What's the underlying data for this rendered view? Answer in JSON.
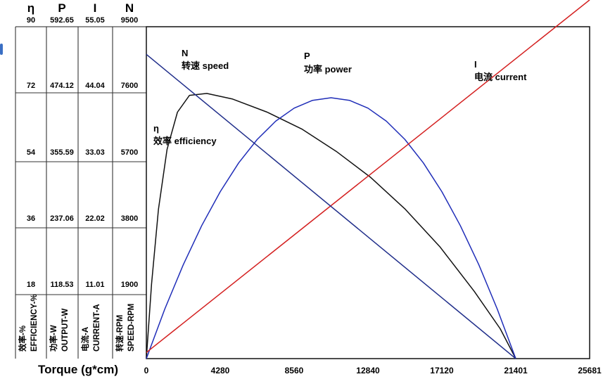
{
  "chart_data": {
    "type": "line",
    "xlabel": "Torque (g*cm)",
    "x_ticks": [
      0,
      4280,
      8560,
      12840,
      17120,
      21401,
      25681
    ],
    "xlim": [
      0,
      25681
    ],
    "grid": "horizontal",
    "left_scales": [
      {
        "header": "η",
        "label_cn": "效率-%",
        "label_en": "EFFICIENCY-%",
        "ticks": [
          18,
          36,
          54,
          72,
          90
        ],
        "max": 90
      },
      {
        "header": "P",
        "label_cn": "功率-W",
        "label_en": "OUTPUT-W",
        "ticks": [
          118.53,
          237.06,
          355.59,
          474.12,
          592.65
        ],
        "max": 592.65
      },
      {
        "header": "I",
        "label_cn": "电流-A",
        "label_en": "CURRENT-A",
        "ticks": [
          11.01,
          22.02,
          33.03,
          44.04,
          55.05
        ],
        "max": 55.05
      },
      {
        "header": "N",
        "label_cn": "转速-RPM",
        "label_en": "SPEED-RPM",
        "ticks": [
          1900,
          3800,
          5700,
          7600,
          9500
        ],
        "max": 9500
      }
    ],
    "series": [
      {
        "name": "效率 efficiency",
        "symbol": "η",
        "scale": "η",
        "color": "#111111",
        "x": [
          0,
          300,
          700,
          1200,
          1800,
          2500,
          3500,
          5000,
          7000,
          9000,
          11000,
          13000,
          15000,
          17000,
          19000,
          20500,
          21401
        ],
        "y": [
          0,
          20,
          40,
          56,
          66,
          70.5,
          71,
          69.5,
          66,
          61.5,
          55.5,
          48.5,
          40,
          30,
          18,
          8,
          0
        ]
      },
      {
        "name": "功率 power",
        "symbol": "P",
        "scale": "P",
        "color": "#1f2db8",
        "x": [
          0,
          1070,
          2140,
          3210,
          4280,
          5350,
          6420,
          7490,
          8560,
          9630,
          10700,
          11770,
          12840,
          13910,
          14980,
          16050,
          17120,
          18190,
          19260,
          20330,
          21401
        ],
        "y": [
          0,
          87.4,
          165.6,
          234.6,
          294.4,
          345.0,
          386.4,
          418.6,
          441.6,
          455.4,
          460.0,
          455.4,
          441.6,
          418.6,
          386.4,
          345.0,
          294.4,
          234.6,
          165.6,
          87.4,
          0
        ]
      },
      {
        "name": "电流 current",
        "symbol": "I",
        "scale": "I",
        "color": "#d42020",
        "x": [
          0,
          25681
        ],
        "y": [
          1.0,
          58.75
        ]
      },
      {
        "name": "转速 speed",
        "symbol": "N",
        "scale": "N",
        "color": "#1f2d8a",
        "x": [
          0,
          21401
        ],
        "y": [
          8600,
          0
        ]
      }
    ]
  }
}
